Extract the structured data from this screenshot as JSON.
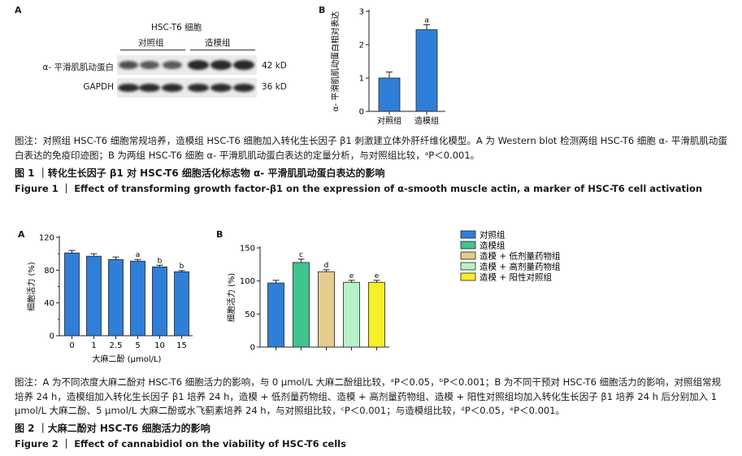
{
  "figure1": {
    "panelA": {
      "letter": "A",
      "cell_label": "HSC-T6 细胞",
      "groups": [
        "对照组",
        "造模组"
      ],
      "rows": [
        {
          "protein": "α- 平滑肌肌动蛋白",
          "size": "42 kD"
        },
        {
          "protein": "GAPDH",
          "size": "36 kD"
        }
      ]
    },
    "panelB": {
      "letter": "B"
    },
    "caption_note": "图注：对照组 HSC-T6 细胞常规培养，造模组 HSC-T6 细胞加入转化生长因子 β1 刺激建立体外肝纤维化模型。A 为 Western blot 检测两组 HSC-T6 细胞 α- 平滑肌肌动蛋白表达的免疫印迹图；B 为两组 HSC-T6 细胞 α- 平滑肌肌动蛋白表达的定量分析，与对照组比较，ᵃP＜0.001。",
    "title_cn": "图 1 ｜转化生长因子 β1 对 HSC-T6 细胞活化标志物 α- 平滑肌肌动蛋白表达的影响",
    "title_en": "Figure 1 ｜ Effect of transforming growth factor-β1 on the expression of α-smooth muscle actin, a marker of HSC-T6 cell activation"
  },
  "figure2": {
    "panelA": {
      "letter": "A"
    },
    "panelB": {
      "letter": "B"
    },
    "caption_note": "图注：A 为不同浓度大麻二酚对 HSC-T6 细胞活力的影响，与 0 μmol/L 大麻二酚组比较，ᵃP＜0.05，ᵇP＜0.001；B 为不同干预对 HSC-T6 细胞活力的影响，对照组常规培养 24 h，造模组加入转化生长因子 β1 培养 24 h，造模 + 低剂量药物组、造模 + 高剂量药物组、造模 + 阳性对照组均加入转化生长因子 β1 培养 24 h 后分别加入 1 μmol/L 大麻二酚、5 μmol/L 大麻二酚或水飞蓟素培养 24 h，与对照组比较，ᶜP＜0.001；与造模组比较，ᵈP＜0.05，ᵉP＜0.001。",
    "title_cn": "图 2 ｜大麻二酚对 HSC-T6 细胞活力的影响",
    "title_en": "Figure 2 ｜ Effect of cannabidiol on the viability of HSC-T6 cells"
  },
  "chart_data": [
    {
      "id": "fig1B",
      "type": "bar",
      "categories": [
        "对照组",
        "造模组"
      ],
      "values": [
        1.0,
        2.45
      ],
      "errors": [
        0.18,
        0.15
      ],
      "sig_labels": [
        "",
        "a"
      ],
      "ylabel": "α- 平滑肌肌动蛋白相对表达",
      "ylim": [
        0,
        3
      ],
      "yticks": [
        0,
        1,
        2,
        3
      ],
      "ytick_labels": [
        "0",
        "1",
        "2",
        "3"
      ],
      "colors": [
        "#2f7fd8"
      ]
    },
    {
      "id": "fig2A",
      "type": "bar",
      "categories": [
        "0",
        "1",
        "2.5",
        "5",
        "10",
        "15"
      ],
      "values": [
        101,
        97,
        93,
        91,
        84,
        78
      ],
      "errors": [
        3,
        3,
        3,
        2,
        2,
        1.5
      ],
      "sig_labels": [
        "",
        "",
        "",
        "a",
        "b",
        "b"
      ],
      "xlabel": "大麻二酚 (μmol/L)",
      "ylabel": "细胞活力 (%)",
      "ylim": [
        0,
        120
      ],
      "yticks": [
        0,
        40,
        80,
        120
      ],
      "ytick_labels": [
        "0",
        "40",
        "80",
        "120"
      ],
      "minor_yticks": [
        20,
        60,
        100
      ],
      "colors": [
        "#2f7fd8"
      ]
    },
    {
      "id": "fig2B",
      "type": "bar",
      "categories": [
        "对照组",
        "造模组",
        "造模 + 低剂量药物组",
        "造模 + 高剂量药物组",
        "造模 + 阳性对照组"
      ],
      "values": [
        97,
        128,
        114,
        98,
        98
      ],
      "errors": [
        4,
        5,
        3,
        3,
        3
      ],
      "sig_labels": [
        "",
        "c",
        "d",
        "e",
        "e"
      ],
      "ylabel": "细胞活力 (%)",
      "ylim": [
        0,
        150
      ],
      "yticks": [
        0,
        50,
        100,
        150
      ],
      "ytick_labels": [
        "0",
        "50",
        "100",
        "150"
      ],
      "colors": [
        "#2f7fd8",
        "#3fc48f",
        "#e3cc8e",
        "#b8f2c8",
        "#f5ef2a"
      ],
      "legend_placement": "right"
    }
  ]
}
